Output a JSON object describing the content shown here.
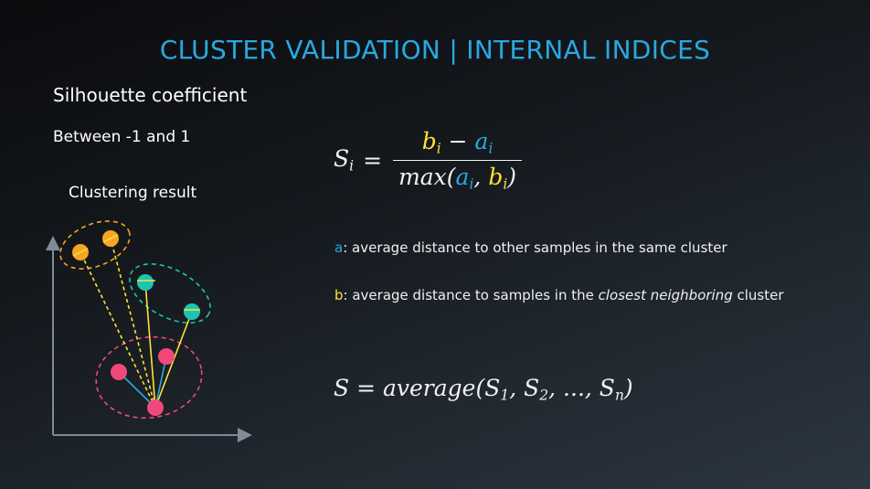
{
  "slide": {
    "title": "CLUSTER VALIDATION | INTERNAL INDICES",
    "subtitle": "Silhouette coefficient",
    "range_note": "Between -1 and 1"
  },
  "diagram": {
    "label": "Clustering result",
    "colors": {
      "orange_cluster": "#f5a623",
      "teal_cluster": "#1dc4b4",
      "pink_cluster": "#f0487a",
      "intra_line": "#29a9e0",
      "inter_line": "#ffe135",
      "axis": "#7e8c98"
    }
  },
  "formula_si": {
    "lhs": "S",
    "lhs_sub": "i",
    "equals": "=",
    "num_b": "b",
    "num_b_sub": "i",
    "minus": " − ",
    "num_a": "a",
    "num_a_sub": "i",
    "den_prefix": "max(",
    "den_a": "a",
    "den_a_sub": "i",
    "den_comma": ", ",
    "den_b": "b",
    "den_b_sub": "i",
    "den_suffix": ")"
  },
  "definitions": {
    "a_key": "a",
    "a_text": ": average distance to other samples in the same cluster",
    "b_key": "b",
    "b_text_before": ": average distance to samples in the ",
    "b_text_emph": "closest neighboring",
    "b_text_after": " cluster"
  },
  "formula_s": {
    "lhs": "S",
    "equals": " = ",
    "fn": "average(",
    "s1": "S",
    "s1_sub": "1",
    "comma1": ", ",
    "s2": "S",
    "s2_sub": "2",
    "dots": ", ..., ",
    "sn": "S",
    "sn_sub": "n",
    "close": ")"
  }
}
